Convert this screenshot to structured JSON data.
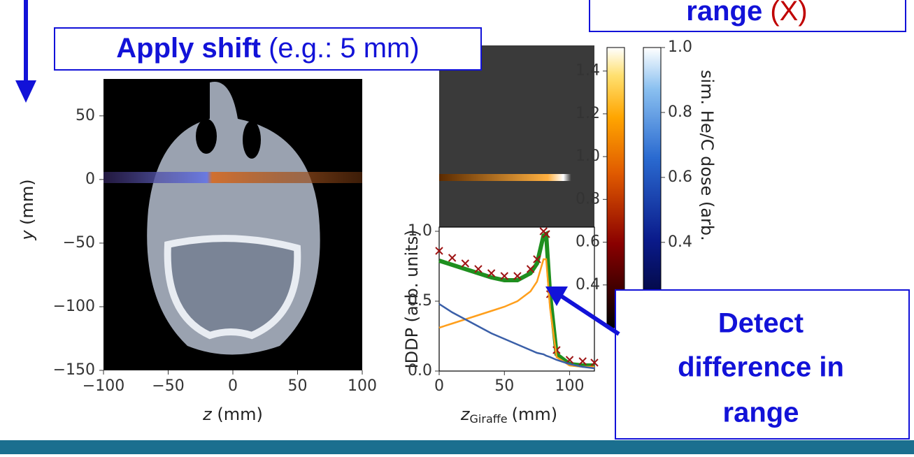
{
  "callouts": {
    "shift": {
      "bold": "Apply shift",
      "rest": "(e.g.: 5 mm)"
    },
    "range_box": {
      "bold": "range",
      "red": "(X)"
    },
    "detect": {
      "lines": [
        "Detect",
        "difference in",
        "range"
      ]
    }
  },
  "ct_plot": {
    "xlabel_var": "z",
    "xlabel_unit": "(mm)",
    "ylabel_var": "y",
    "ylabel_unit": "(mm)",
    "xlim": [
      -100,
      100
    ],
    "ylim": [
      -150,
      79
    ],
    "xticks": [
      {
        "value": -100,
        "label": "−100"
      },
      {
        "value": -50,
        "label": "−50"
      },
      0,
      50,
      100
    ],
    "yticks": [
      {
        "value": -150,
        "label": "−150"
      },
      {
        "value": -100,
        "label": "−100"
      },
      {
        "value": -50,
        "label": "−50"
      },
      0,
      50
    ]
  },
  "iddp_plot": {
    "ylabel": "IDDP (arb. units)",
    "xlabel_var": "z",
    "xlabel_sub": "Giraffe",
    "xlabel_unit": "(mm)",
    "xlim": [
      0,
      119
    ],
    "ylim": [
      0,
      1.03
    ],
    "xticks": [
      0,
      50,
      100
    ],
    "yticks": [
      {
        "value": 0,
        "label": "0.0"
      },
      {
        "value": 0.5,
        "label": "0.5"
      },
      {
        "value": 1,
        "label": "1.0"
      }
    ],
    "x": [
      0,
      10,
      20,
      30,
      40,
      50,
      60,
      70,
      75,
      80,
      82,
      85,
      90,
      100,
      110,
      119
    ],
    "series": [
      {
        "color": "#1f8f1f",
        "style": "line",
        "values": [
          0.79,
          0.76,
          0.73,
          0.7,
          0.67,
          0.65,
          0.65,
          0.7,
          0.77,
          0.97,
          0.98,
          0.55,
          0.12,
          0.05,
          0.04,
          0.04
        ]
      },
      {
        "color": "#9e1414",
        "style": "marker",
        "values": [
          0.86,
          0.81,
          0.77,
          0.73,
          0.7,
          0.68,
          0.68,
          0.73,
          0.8,
          1.0,
          0.98,
          0.55,
          0.15,
          0.08,
          0.07,
          0.06
        ]
      },
      {
        "color": "#ff9f1c",
        "style": "line",
        "values": [
          0.31,
          0.34,
          0.37,
          0.4,
          0.43,
          0.46,
          0.5,
          0.57,
          0.64,
          0.8,
          0.8,
          0.45,
          0.1,
          0.04,
          0.03,
          0.03
        ]
      },
      {
        "color": "#3a5fa8",
        "style": "line",
        "values": [
          0.48,
          0.42,
          0.37,
          0.32,
          0.27,
          0.23,
          0.19,
          0.15,
          0.13,
          0.12,
          0.11,
          0.1,
          0.08,
          0.05,
          0.03,
          0.02
        ]
      }
    ]
  },
  "colorbars": [
    {
      "lim": [
        0.2,
        1.51
      ],
      "ticks": [
        {
          "value": 1.4,
          "label": "1.4"
        },
        1.2,
        {
          "value": 1,
          "label": "1.0"
        },
        0.8,
        0.6,
        0.4
      ]
    },
    {
      "label": "sim. He/C dose (arb.",
      "lim": [
        0.15,
        1
      ],
      "ticks": [
        {
          "value": 1,
          "label": "1.0"
        },
        0.8,
        0.6,
        0.4
      ]
    }
  ]
}
